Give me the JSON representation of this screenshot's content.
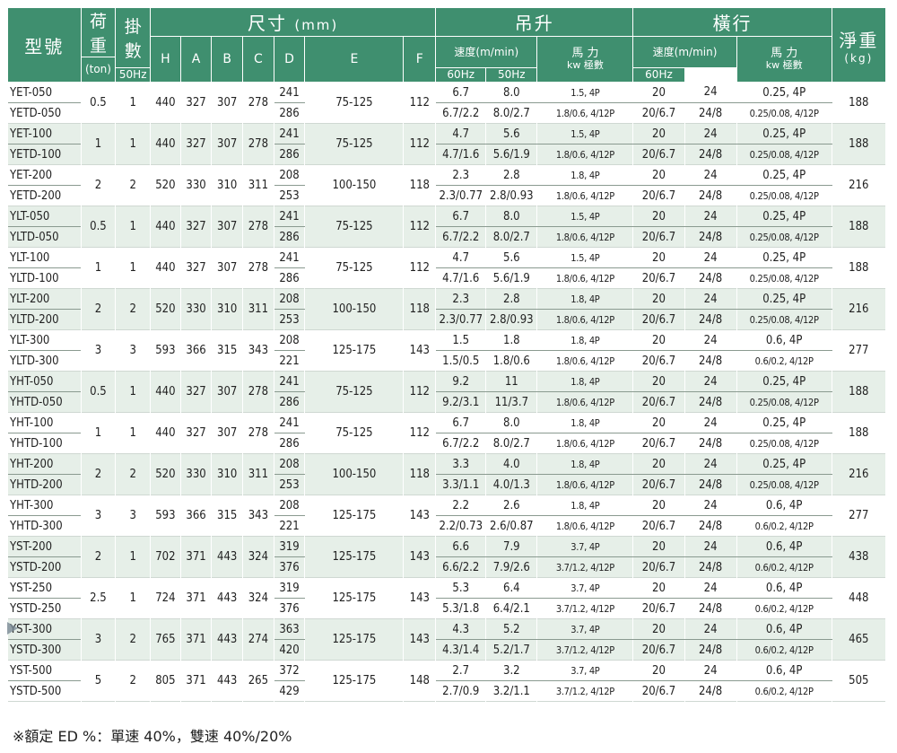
{
  "header": {
    "model": "型號",
    "load": "荷重",
    "load_unit": "(ton)",
    "hooks": "掛數",
    "dimensions": "尺寸",
    "dimensions_unit": "(mm)",
    "hoist": "吊升",
    "traverse": "橫行",
    "weight": "淨重",
    "weight_unit": "(kg)",
    "dim_cols": [
      "H",
      "A",
      "B",
      "C",
      "D",
      "E",
      "F"
    ],
    "speed": "速度(m/min)",
    "power": "馬 力",
    "power_sub": "kw 極數",
    "hz50": "50Hz",
    "hz60": "60Hz"
  },
  "rows": [
    {
      "m1": "YET-050",
      "m2": "YETD-050",
      "load": "0.5",
      "hooks": "1",
      "H": "440",
      "A": "327",
      "B": "307",
      "C": "278",
      "D1": "241",
      "D2": "286",
      "E": "75-125",
      "F": "112",
      "h50a": "6.7",
      "h60a": "8.0",
      "hp1": "1.5, 4P",
      "h50b": "6.7/2.2",
      "h60b": "8.0/2.7",
      "hp2": "1.8/0.6, 4/12P",
      "t50a": "20",
      "t60a": "24",
      "tp1": "0.25, 4P",
      "t50b": "20/6.7",
      "t60b": "24/8",
      "tp2": "0.25/0.08, 4/12P",
      "kg": "188"
    },
    {
      "m1": "YET-100",
      "m2": "YETD-100",
      "load": "1",
      "hooks": "1",
      "H": "440",
      "A": "327",
      "B": "307",
      "C": "278",
      "D1": "241",
      "D2": "286",
      "E": "75-125",
      "F": "112",
      "h50a": "4.7",
      "h60a": "5.6",
      "hp1": "1.5, 4P",
      "h50b": "4.7/1.6",
      "h60b": "5.6/1.9",
      "hp2": "1.8/0.6, 4/12P",
      "t50a": "20",
      "t60a": "24",
      "tp1": "0.25, 4P",
      "t50b": "20/6.7",
      "t60b": "24/8",
      "tp2": "0.25/0.08, 4/12P",
      "kg": "188"
    },
    {
      "m1": "YET-200",
      "m2": "YETD-200",
      "load": "2",
      "hooks": "2",
      "H": "520",
      "A": "330",
      "B": "310",
      "C": "311",
      "D1": "208",
      "D2": "253",
      "E": "100-150",
      "F": "118",
      "h50a": "2.3",
      "h60a": "2.8",
      "hp1": "1.8, 4P",
      "h50b": "2.3/0.77",
      "h60b": "2.8/0.93",
      "hp2": "1.8/0.6, 4/12P",
      "t50a": "20",
      "t60a": "24",
      "tp1": "0.25, 4P",
      "t50b": "20/6.7",
      "t60b": "24/8",
      "tp2": "0.25/0.08, 4/12P",
      "kg": "216"
    },
    {
      "m1": "YLT-050",
      "m2": "YLTD-050",
      "load": "0.5",
      "hooks": "1",
      "H": "440",
      "A": "327",
      "B": "307",
      "C": "278",
      "D1": "241",
      "D2": "286",
      "E": "75-125",
      "F": "112",
      "h50a": "6.7",
      "h60a": "8.0",
      "hp1": "1.5, 4P",
      "h50b": "6.7/2.2",
      "h60b": "8.0/2.7",
      "hp2": "1.8/0.6, 4/12P",
      "t50a": "20",
      "t60a": "24",
      "tp1": "0.25, 4P",
      "t50b": "20/6.7",
      "t60b": "24/8",
      "tp2": "0.25/0.08, 4/12P",
      "kg": "188"
    },
    {
      "m1": "YLT-100",
      "m2": "YLTD-100",
      "load": "1",
      "hooks": "1",
      "H": "440",
      "A": "327",
      "B": "307",
      "C": "278",
      "D1": "241",
      "D2": "286",
      "E": "75-125",
      "F": "112",
      "h50a": "4.7",
      "h60a": "5.6",
      "hp1": "1.5, 4P",
      "h50b": "4.7/1.6",
      "h60b": "5.6/1.9",
      "hp2": "1.8/0.6, 4/12P",
      "t50a": "20",
      "t60a": "24",
      "tp1": "0.25, 4P",
      "t50b": "20/6.7",
      "t60b": "24/8",
      "tp2": "0.25/0.08, 4/12P",
      "kg": "188"
    },
    {
      "m1": "YLT-200",
      "m2": "YLTD-200",
      "load": "2",
      "hooks": "2",
      "H": "520",
      "A": "330",
      "B": "310",
      "C": "311",
      "D1": "208",
      "D2": "253",
      "E": "100-150",
      "F": "118",
      "h50a": "2.3",
      "h60a": "2.8",
      "hp1": "1.8, 4P",
      "h50b": "2.3/0.77",
      "h60b": "2.8/0.93",
      "hp2": "1.8/0.6, 4/12P",
      "t50a": "20",
      "t60a": "24",
      "tp1": "0.25, 4P",
      "t50b": "20/6.7",
      "t60b": "24/8",
      "tp2": "0.25/0.08, 4/12P",
      "kg": "216"
    },
    {
      "m1": "YLT-300",
      "m2": "YLTD-300",
      "load": "3",
      "hooks": "3",
      "H": "593",
      "A": "366",
      "B": "315",
      "C": "343",
      "D1": "208",
      "D2": "221",
      "E": "125-175",
      "F": "143",
      "h50a": "1.5",
      "h60a": "1.8",
      "hp1": "1.8, 4P",
      "h50b": "1.5/0.5",
      "h60b": "1.8/0.6",
      "hp2": "1.8/0.6, 4/12P",
      "t50a": "20",
      "t60a": "24",
      "tp1": "0.6, 4P",
      "t50b": "20/6.7",
      "t60b": "24/8",
      "tp2": "0.6/0.2, 4/12P",
      "kg": "277"
    },
    {
      "m1": "YHT-050",
      "m2": "YHTD-050",
      "load": "0.5",
      "hooks": "1",
      "H": "440",
      "A": "327",
      "B": "307",
      "C": "278",
      "D1": "241",
      "D2": "286",
      "E": "75-125",
      "F": "112",
      "h50a": "9.2",
      "h60a": "11",
      "hp1": "1.8, 4P",
      "h50b": "9.2/3.1",
      "h60b": "11/3.7",
      "hp2": "1.8/0.6, 4/12P",
      "t50a": "20",
      "t60a": "24",
      "tp1": "0.25, 4P",
      "t50b": "20/6.7",
      "t60b": "24/8",
      "tp2": "0.25/0.08, 4/12P",
      "kg": "188"
    },
    {
      "m1": "YHT-100",
      "m2": "YHTD-100",
      "load": "1",
      "hooks": "1",
      "H": "440",
      "A": "327",
      "B": "307",
      "C": "278",
      "D1": "241",
      "D2": "286",
      "E": "75-125",
      "F": "112",
      "h50a": "6.7",
      "h60a": "8.0",
      "hp1": "1.8, 4P",
      "h50b": "6.7/2.2",
      "h60b": "8.0/2.7",
      "hp2": "1.8/0.6, 4/12P",
      "t50a": "20",
      "t60a": "24",
      "tp1": "0.25, 4P",
      "t50b": "20/6.7",
      "t60b": "24/8",
      "tp2": "0.25/0.08, 4/12P",
      "kg": "188"
    },
    {
      "m1": "YHT-200",
      "m2": "YHTD-200",
      "load": "2",
      "hooks": "2",
      "H": "520",
      "A": "330",
      "B": "310",
      "C": "311",
      "D1": "208",
      "D2": "253",
      "E": "100-150",
      "F": "118",
      "h50a": "3.3",
      "h60a": "4.0",
      "hp1": "1.8, 4P",
      "h50b": "3.3/1.1",
      "h60b": "4.0/1.3",
      "hp2": "1.8/0.6, 4/12P",
      "t50a": "20",
      "t60a": "24",
      "tp1": "0.25, 4P",
      "t50b": "20/6.7",
      "t60b": "24/8",
      "tp2": "0.25/0.08, 4/12P",
      "kg": "216"
    },
    {
      "m1": "YHT-300",
      "m2": "YHTD-300",
      "load": "3",
      "hooks": "3",
      "H": "593",
      "A": "366",
      "B": "315",
      "C": "343",
      "D1": "208",
      "D2": "221",
      "E": "125-175",
      "F": "143",
      "h50a": "2.2",
      "h60a": "2.6",
      "hp1": "1.8, 4P",
      "h50b": "2.2/0.73",
      "h60b": "2.6/0.87",
      "hp2": "1.8/0.6, 4/12P",
      "t50a": "20",
      "t60a": "24",
      "tp1": "0.6, 4P",
      "t50b": "20/6.7",
      "t60b": "24/8",
      "tp2": "0.6/0.2, 4/12P",
      "kg": "277"
    },
    {
      "m1": "YST-200",
      "m2": "YSTD-200",
      "load": "2",
      "hooks": "1",
      "H": "702",
      "A": "371",
      "B": "443",
      "C": "324",
      "D1": "319",
      "D2": "376",
      "E": "125-175",
      "F": "143",
      "h50a": "6.6",
      "h60a": "7.9",
      "hp1": "3.7, 4P",
      "h50b": "6.6/2.2",
      "h60b": "7.9/2.6",
      "hp2": "3.7/1.2, 4/12P",
      "t50a": "20",
      "t60a": "24",
      "tp1": "0.6, 4P",
      "t50b": "20/6.7",
      "t60b": "24/8",
      "tp2": "0.6/0.2, 4/12P",
      "kg": "438"
    },
    {
      "m1": "YST-250",
      "m2": "YSTD-250",
      "load": "2.5",
      "hooks": "1",
      "H": "724",
      "A": "371",
      "B": "443",
      "C": "324",
      "D1": "319",
      "D2": "376",
      "E": "125-175",
      "F": "143",
      "h50a": "5.3",
      "h60a": "6.4",
      "hp1": "3.7, 4P",
      "h50b": "5.3/1.8",
      "h60b": "6.4/2.1",
      "hp2": "3.7/1.2, 4/12P",
      "t50a": "20",
      "t60a": "24",
      "tp1": "0.6, 4P",
      "t50b": "20/6.7",
      "t60b": "24/8",
      "tp2": "0.6/0.2, 4/12P",
      "kg": "448"
    },
    {
      "m1": "YST-300",
      "m2": "YSTD-300",
      "load": "3",
      "hooks": "2",
      "H": "765",
      "A": "371",
      "B": "443",
      "C": "274",
      "D1": "363",
      "D2": "420",
      "E": "125-175",
      "F": "143",
      "h50a": "4.3",
      "h60a": "5.2",
      "hp1": "3.7, 4P",
      "h50b": "4.3/1.4",
      "h60b": "5.2/1.7",
      "hp2": "3.7/1.2, 4/12P",
      "t50a": "20",
      "t60a": "24",
      "tp1": "0.6, 4P",
      "t50b": "20/6.7",
      "t60b": "24/8",
      "tp2": "0.6/0.2, 4/12P",
      "kg": "465"
    },
    {
      "m1": "YST-500",
      "m2": "YSTD-500",
      "load": "5",
      "hooks": "2",
      "H": "805",
      "A": "371",
      "B": "443",
      "C": "265",
      "D1": "372",
      "D2": "429",
      "E": "125-175",
      "F": "148",
      "h50a": "2.7",
      "h60a": "3.2",
      "hp1": "3.7, 4P",
      "h50b": "2.7/0.9",
      "h60b": "3.2/1.1",
      "hp2": "3.7/1.2, 4/12P",
      "t50a": "20",
      "t60a": "24",
      "tp1": "0.6, 4P",
      "t50b": "20/6.7",
      "t60b": "24/8",
      "tp2": "0.6/0.2, 4/12P",
      "kg": "505"
    }
  ],
  "footnote": "※額定 ED %：單速 40%，雙速 40%/20%",
  "colors": {
    "header_bg": "#3f8f6f",
    "shade_bg": "#e6efe8"
  }
}
